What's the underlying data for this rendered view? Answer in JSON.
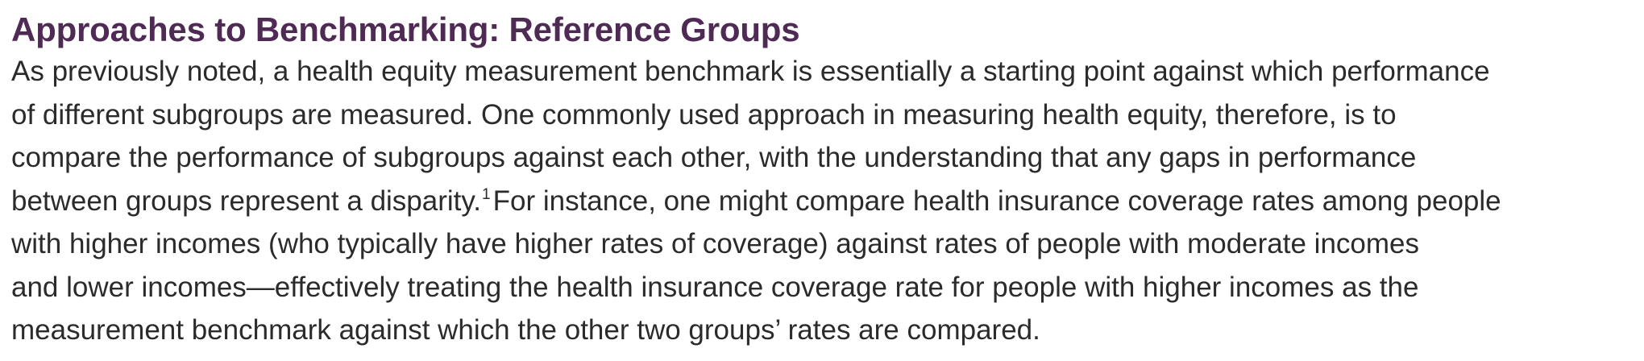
{
  "section": {
    "heading": "Approaches to Benchmarking: Reference Groups",
    "lines": [
      "As previously noted, a health equity measurement benchmark is essentially a starting point against which performance",
      "of different subgroups are measured. One commonly used approach in measuring health equity, therefore, is to",
      "compare the performance of subgroups against each other, with the understanding that any gaps in performance",
      "between groups represent a disparity.",
      "For instance, one might compare health insurance coverage rates among people",
      "with higher incomes (who typically have higher rates of coverage) against rates of people with moderate incomes",
      "and lower incomes—effectively treating the health insurance coverage rate for people with higher incomes as the",
      "measurement benchmark against which the other two groups’ rates are compared."
    ],
    "footnote_marker": "1"
  },
  "colors": {
    "heading": "#4f2a55",
    "body": "#2b2b2b"
  }
}
